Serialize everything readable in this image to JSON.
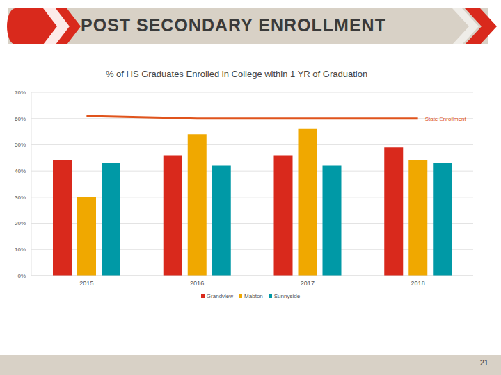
{
  "slide": {
    "header": "POST SECONDARY ENROLLMENT",
    "page_number": "21"
  },
  "chart_data": {
    "type": "bar",
    "title": "% of HS Graduates Enrolled in College within 1 YR of Graduation",
    "categories": [
      "2015",
      "2016",
      "2017",
      "2018"
    ],
    "series": [
      {
        "name": "Grandview",
        "color": "#d9291c",
        "values": [
          44,
          46,
          46,
          49
        ]
      },
      {
        "name": "Mabton",
        "color": "#f0a800",
        "values": [
          30,
          54,
          56,
          44
        ]
      },
      {
        "name": "Sunnyside",
        "color": "#0099a6",
        "values": [
          43,
          42,
          42,
          43
        ]
      },
      {
        "name": "State Enrollment",
        "type": "line",
        "color": "#e0541c",
        "values": [
          61,
          60,
          60,
          60
        ]
      }
    ],
    "ylim": [
      0,
      70
    ],
    "yticks": [
      {
        "value": 0,
        "label": "0%"
      },
      {
        "value": 10,
        "label": "10%"
      },
      {
        "value": 20,
        "label": "20%"
      },
      {
        "value": 30,
        "label": "30%"
      },
      {
        "value": 40,
        "label": "40%"
      },
      {
        "value": 50,
        "label": "50%"
      },
      {
        "value": 60,
        "label": "60%"
      },
      {
        "value": 70,
        "label": "70%"
      }
    ],
    "grid": true,
    "legend": "bottom"
  }
}
